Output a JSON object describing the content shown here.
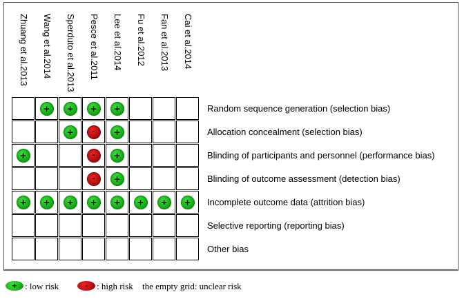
{
  "studies": [
    "Zhuang et al.2013",
    "Wang et al.2014",
    "Sperduto et al.2013",
    "Pesce et al.2011",
    "Lee et al.2014",
    "Fu et al.2012",
    "Fan et al.2013",
    "Cai et al.2014"
  ],
  "domains": [
    {
      "label": "Random sequence generation (selection bias)",
      "ratings": [
        "",
        "low",
        "low",
        "low",
        "low",
        "",
        "",
        ""
      ]
    },
    {
      "label": "Allocation concealment (selection bias)",
      "ratings": [
        "",
        "",
        "low",
        "high",
        "low",
        "",
        "",
        ""
      ]
    },
    {
      "label": "Blinding of participants and personnel (performance bias)",
      "ratings": [
        "low",
        "",
        "",
        "high",
        "low",
        "",
        "",
        ""
      ]
    },
    {
      "label": "Blinding of outcome assessment (detection bias)",
      "ratings": [
        "",
        "",
        "",
        "high",
        "low",
        "",
        "",
        ""
      ]
    },
    {
      "label": "Incomplete outcome data (attrition bias)",
      "ratings": [
        "low",
        "low",
        "low",
        "low",
        "low",
        "low",
        "low",
        "low"
      ]
    },
    {
      "label": "Selective reporting (reporting bias)",
      "ratings": [
        "",
        "",
        "",
        "",
        "",
        "",
        "",
        ""
      ]
    },
    {
      "label": "Other bias",
      "ratings": [
        "",
        "",
        "",
        "",
        "",
        "",
        "",
        ""
      ]
    }
  ],
  "symbols": {
    "low": "+",
    "high": "-"
  },
  "colors": {
    "low": "#14b414",
    "high": "#b81010"
  },
  "legend": {
    "low_text": ":  low risk",
    "high_text": ": high risk",
    "empty_text": "the empty grid: unclear risk"
  }
}
